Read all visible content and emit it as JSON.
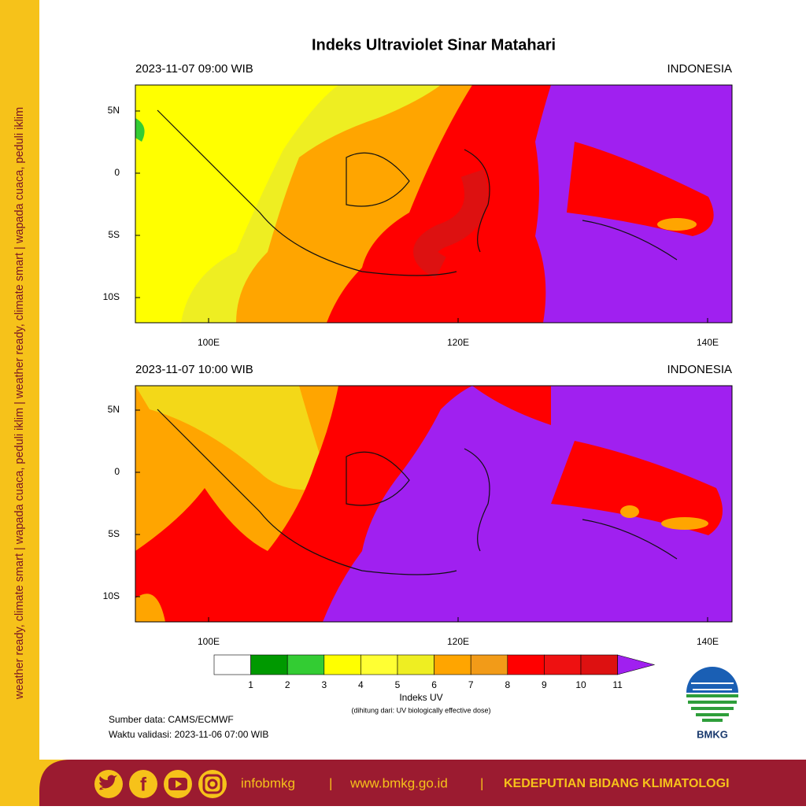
{
  "title": "Indeks Ultraviolet Sinar Matahari",
  "panels": [
    {
      "time": "2023-11-07  09:00 WIB",
      "region": "INDONESIA"
    },
    {
      "time": "2023-11-07  10:00 WIB",
      "region": "INDONESIA"
    }
  ],
  "map": {
    "lat_labels": [
      "5N",
      "0",
      "5S",
      "10S"
    ],
    "lon_labels": [
      "100E",
      "120E",
      "140E"
    ]
  },
  "colorbar": {
    "labels": [
      "1",
      "2",
      "3",
      "4",
      "5",
      "6",
      "7",
      "8",
      "9",
      "10",
      "11"
    ],
    "colors": [
      "#ffffff",
      "#009900",
      "#33cc33",
      "#ffff00",
      "#ffff33",
      "#eeee22",
      "#ffa500",
      "#f29b18",
      "#ff0000",
      "#ee1111",
      "#dd1111",
      "#a020f0"
    ],
    "title": "Indeks UV",
    "note": "(dihitung dari: UV biologically effective dose)"
  },
  "source": "Sumber data: CAMS/ECMWF",
  "validity": "Waktu validasi: 2023-11-06 07:00 WIB",
  "logo": "BMKG",
  "sidebar": "weather ready, climate smart  |  wapada cuaca, peduli iklim  |  weather ready, climate smart  |  wapada cuaca, peduli iklim",
  "footer": {
    "handle": "infobmkg",
    "separator": "|",
    "website": "www.bmkg.go.id",
    "unit": "KEDEPUTIAN BIDANG KLIMATOLOGI"
  }
}
